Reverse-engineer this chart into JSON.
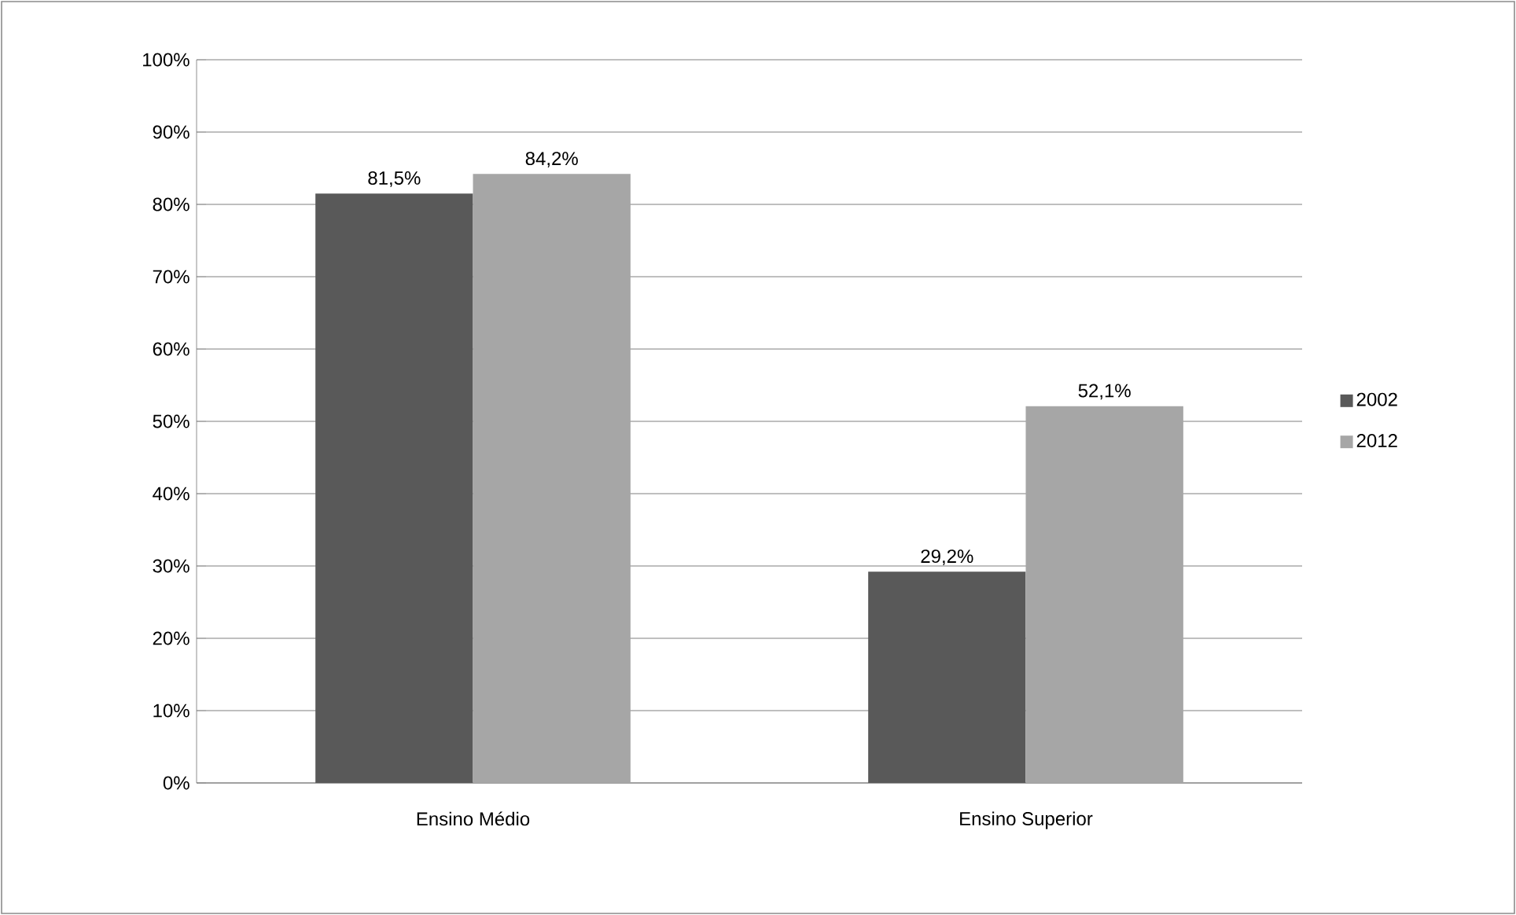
{
  "chart_data": {
    "type": "bar",
    "categories": [
      "Ensino Médio",
      "Ensino Superior"
    ],
    "series": [
      {
        "name": "2002",
        "color": "#595959",
        "values": [
          81.5,
          29.2
        ],
        "value_labels": [
          "81,5%",
          "29,2%"
        ]
      },
      {
        "name": "2012",
        "color": "#a6a6a6",
        "values": [
          84.2,
          52.1
        ],
        "value_labels": [
          "84,2%",
          "52,1%"
        ]
      }
    ],
    "ylim": [
      0,
      100
    ],
    "yticks": [
      {
        "value": 0,
        "label": "0%"
      },
      {
        "value": 10,
        "label": "10%"
      },
      {
        "value": 20,
        "label": "20%"
      },
      {
        "value": 30,
        "label": "30%"
      },
      {
        "value": 40,
        "label": "40%"
      },
      {
        "value": 50,
        "label": "50%"
      },
      {
        "value": 60,
        "label": "60%"
      },
      {
        "value": 70,
        "label": "70%"
      },
      {
        "value": 80,
        "label": "80%"
      },
      {
        "value": 90,
        "label": "90%"
      },
      {
        "value": 100,
        "label": "100%"
      }
    ],
    "grid": "y",
    "legend": "right"
  }
}
